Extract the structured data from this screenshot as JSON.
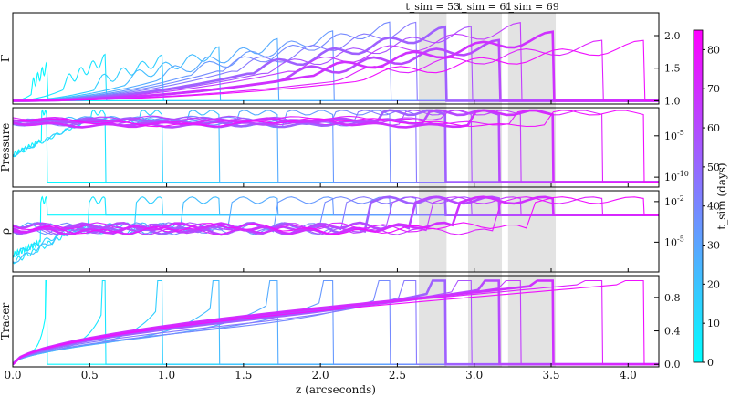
{
  "chart_data": {
    "type": "line",
    "xlabel": "z (arcseconds)",
    "xlim": [
      0.0,
      4.2
    ],
    "x_ticks": [
      "0.0",
      "0.5",
      "1.0",
      "1.5",
      "2.0",
      "2.5",
      "3.0",
      "3.5",
      "4.0"
    ],
    "colorbar": {
      "label": "t_sim (days)",
      "range": [
        0,
        85
      ],
      "ticks": [
        "0",
        "10",
        "20",
        "30",
        "40",
        "50",
        "60",
        "70",
        "80"
      ],
      "colors": [
        "#00ffff",
        "#ff00ff"
      ]
    },
    "highlight_bands": [
      {
        "label": "t_sim = 53",
        "time": 53,
        "x_range": [
          2.64,
          2.82
        ],
        "front": 2.81
      },
      {
        "label": "t_sim = 61",
        "time": 61,
        "x_range": [
          2.96,
          3.18
        ],
        "front": 3.16
      },
      {
        "label": "t_sim = 69",
        "time": 69,
        "x_range": [
          3.22,
          3.53
        ],
        "front": 3.51
      }
    ],
    "panels": [
      {
        "ylabel": "Γ",
        "yticks": [
          "1.0",
          "1.5",
          "2.0"
        ],
        "scale": "linear",
        "ylim": [
          0.95,
          2.35
        ]
      },
      {
        "ylabel": "Pressure",
        "yticks": [
          "10^-5",
          "10^-10"
        ],
        "scale": "log",
        "ylim": [
          -11.2,
          -1.6
        ]
      },
      {
        "ylabel": "ρ",
        "yticks": [
          "10^-2",
          "10^-5"
        ],
        "scale": "log",
        "ylim": [
          -7.2,
          -1.2
        ]
      },
      {
        "ylabel": "Tracer",
        "yticks": [
          "0.0",
          "0.4",
          "0.8"
        ],
        "scale": "linear",
        "ylim": [
          -0.03,
          1.06
        ]
      }
    ],
    "series": [
      {
        "time": 3,
        "front": 0.22
      },
      {
        "time": 9,
        "front": 0.6
      },
      {
        "time": 16,
        "front": 0.97
      },
      {
        "time": 22,
        "front": 1.34
      },
      {
        "time": 28,
        "front": 1.72
      },
      {
        "time": 34,
        "front": 2.08
      },
      {
        "time": 39,
        "front": 2.45
      },
      {
        "time": 45,
        "front": 2.62
      },
      {
        "time": 53,
        "front": 2.81
      },
      {
        "time": 57,
        "front": 2.98
      },
      {
        "time": 61,
        "front": 3.16
      },
      {
        "time": 65,
        "front": 3.3
      },
      {
        "time": 69,
        "front": 3.51
      },
      {
        "time": 74,
        "front": 3.83
      },
      {
        "time": 80,
        "front": 4.1
      }
    ]
  }
}
